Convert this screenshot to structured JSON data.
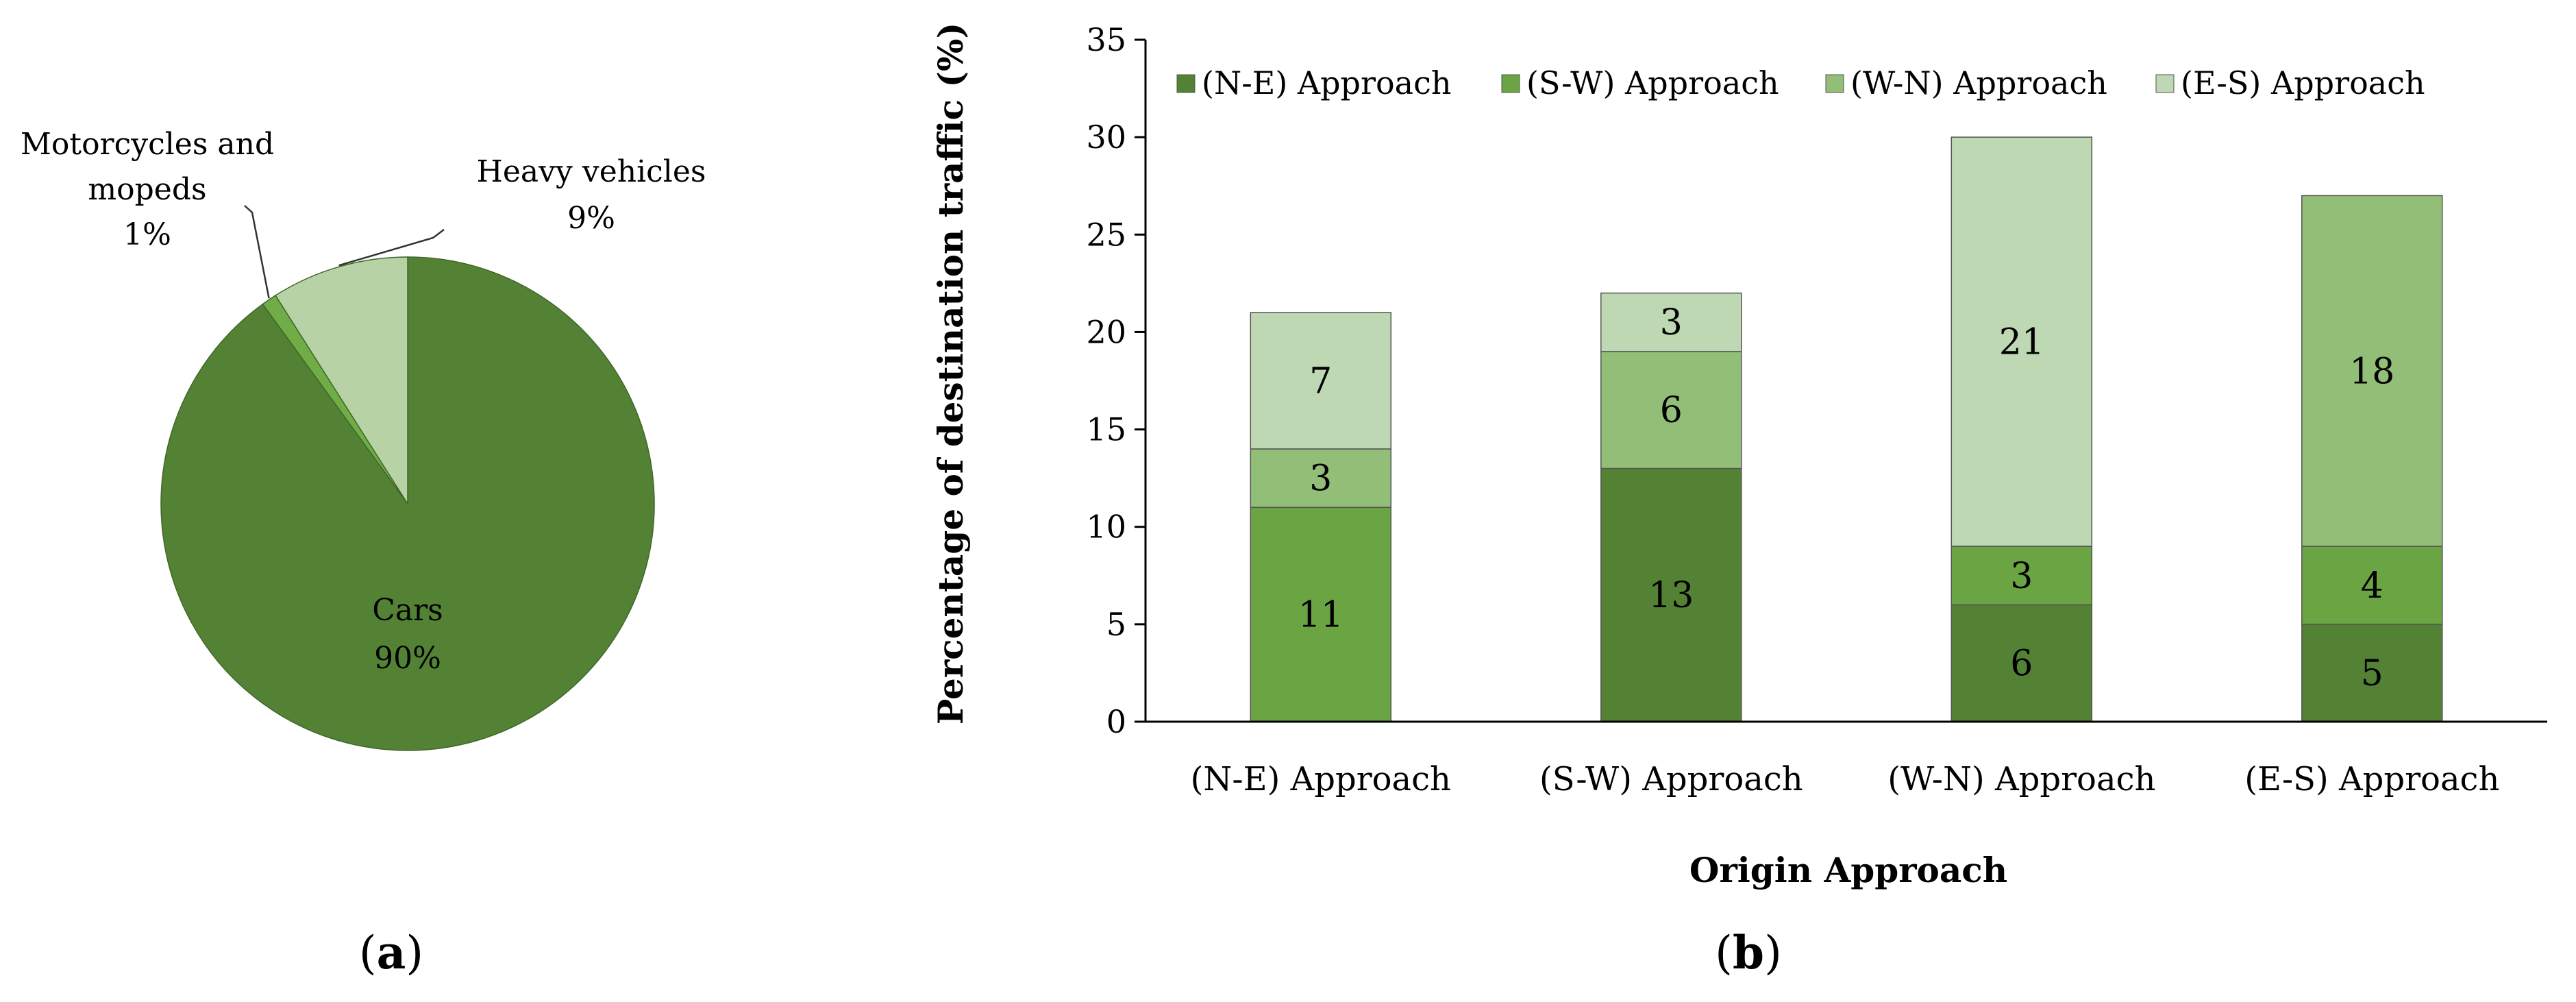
{
  "chart_data": [
    {
      "type": "pie",
      "panel": "a",
      "slices": [
        {
          "label": "Cars",
          "value": 90,
          "value_label": "90%",
          "color": "#548235"
        },
        {
          "label": "Motorcycles and mopeds",
          "label_lines": [
            "Motorcycles and",
            "mopeds"
          ],
          "value": 1,
          "value_label": "1%",
          "color": "#70AD47"
        },
        {
          "label": "Heavy vehicles",
          "label_lines": [
            "Heavy vehicles"
          ],
          "value": 9,
          "value_label": "9%",
          "color": "#B7D3A6"
        }
      ]
    },
    {
      "type": "bar",
      "stacked": true,
      "panel": "b",
      "xlabel": "Origin Approach",
      "ylabel": "Percentage of destination  traffic (%)",
      "ylim": [
        0,
        35
      ],
      "yticks": [
        0,
        5,
        10,
        15,
        20,
        25,
        30,
        35
      ],
      "legend_position": "top",
      "categories": [
        "(N-E) Approach",
        "(S-W) Approach",
        "(W-N) Approach",
        "(E-S) Approach"
      ],
      "series": [
        {
          "name": "(N-E) Approach",
          "color": "#548235",
          "values": [
            0,
            13,
            6,
            5
          ]
        },
        {
          "name": "(S-W) Approach",
          "color": "#6AA443",
          "values": [
            11,
            0,
            3,
            4
          ]
        },
        {
          "name": "(W-N) Approach",
          "color": "#93BE77",
          "values": [
            3,
            6,
            0,
            18
          ]
        },
        {
          "name": "(E-S) Approach",
          "color": "#BDD8B2",
          "values": [
            7,
            3,
            21,
            0
          ]
        }
      ]
    }
  ],
  "panels": {
    "a": "a",
    "b": "b"
  }
}
